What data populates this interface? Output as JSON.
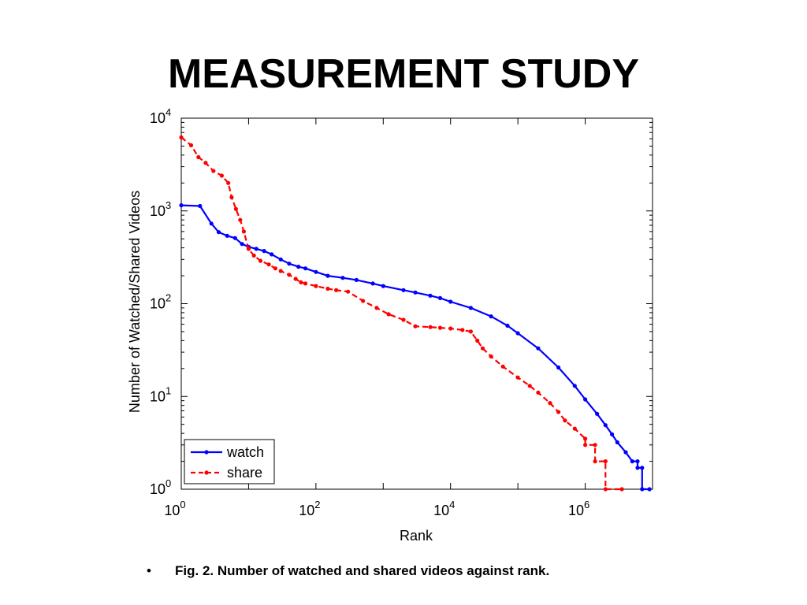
{
  "slide": {
    "title": "MEASUREMENT STUDY",
    "caption_bullet": "•",
    "caption": "Fig. 2. Number of watched and shared videos against rank."
  },
  "chart_data": {
    "type": "line",
    "xscale": "log",
    "yscale": "log",
    "xlim": [
      1,
      10000000
    ],
    "ylim": [
      1,
      10000
    ],
    "xlabel": "Rank",
    "ylabel": "Number of Watched/Shared Videos",
    "x_ticks": [
      {
        "value": 1,
        "base": "10",
        "exp": "0"
      },
      {
        "value": 100,
        "base": "10",
        "exp": "2"
      },
      {
        "value": 10000,
        "base": "10",
        "exp": "4"
      },
      {
        "value": 1000000,
        "base": "10",
        "exp": "6"
      }
    ],
    "y_ticks": [
      {
        "value": 1,
        "base": "10",
        "exp": "0"
      },
      {
        "value": 10,
        "base": "10",
        "exp": "1"
      },
      {
        "value": 100,
        "base": "10",
        "exp": "2"
      },
      {
        "value": 1000,
        "base": "10",
        "exp": "3"
      },
      {
        "value": 10000,
        "base": "10",
        "exp": "4"
      }
    ],
    "legend_position": "bottom-left",
    "series": [
      {
        "name": "watch",
        "color": "#0000ff",
        "style": "solid",
        "x": [
          1,
          1.9,
          2.8,
          3.6,
          4.8,
          6.3,
          8,
          10,
          13,
          17,
          22,
          30,
          40,
          55,
          70,
          100,
          150,
          250,
          400,
          700,
          1000,
          2000,
          3000,
          5000,
          7000,
          10000,
          20000,
          40000,
          70000,
          100000,
          200000,
          400000,
          700000,
          1000000,
          1500000,
          2000000,
          2500000,
          3000000,
          4000000,
          5000000,
          6000000,
          6000000,
          7000000,
          7000000,
          9000000
        ],
        "y": [
          1150,
          1130,
          730,
          590,
          540,
          510,
          440,
          410,
          390,
          370,
          340,
          300,
          270,
          250,
          240,
          220,
          200,
          190,
          180,
          165,
          155,
          140,
          132,
          122,
          115,
          105,
          90,
          73,
          58,
          48,
          33,
          20.5,
          13,
          9.3,
          6.5,
          4.9,
          3.9,
          3.2,
          2.5,
          2,
          2,
          1.7,
          1.7,
          1,
          1
        ]
      },
      {
        "name": "share",
        "color": "#ff0000",
        "style": "dashed",
        "x": [
          1,
          1.4,
          1.8,
          2.3,
          3,
          4,
          5,
          5.6,
          6.5,
          7.5,
          8.5,
          10,
          12,
          15,
          20,
          25,
          30,
          40,
          50,
          60,
          70,
          100,
          150,
          200,
          300,
          500,
          800,
          1200,
          2000,
          3000,
          5000,
          7000,
          10000,
          15000,
          20000,
          25000,
          30000,
          40000,
          60000,
          100000,
          150000,
          200000,
          300000,
          400000,
          500000,
          700000,
          1000000,
          1000000,
          1400000,
          1400000,
          2000000,
          2000000,
          3500000
        ],
        "y": [
          6200,
          5100,
          3800,
          3300,
          2700,
          2400,
          2000,
          1400,
          1050,
          800,
          600,
          390,
          330,
          290,
          265,
          240,
          225,
          205,
          185,
          170,
          165,
          155,
          145,
          140,
          135,
          107,
          90,
          77,
          67,
          57,
          56,
          55,
          54,
          52,
          50,
          40,
          33,
          27,
          21,
          16,
          13,
          11,
          8.5,
          6.8,
          5.5,
          4.5,
          3.5,
          3,
          3,
          2,
          2,
          1,
          1
        ]
      }
    ]
  }
}
